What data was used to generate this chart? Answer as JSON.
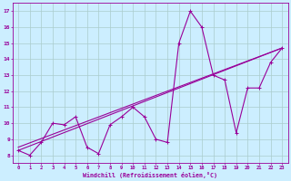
{
  "xlabel": "Windchill (Refroidissement éolien,°C)",
  "background_color": "#cceeff",
  "grid_color": "#aacccc",
  "line_color": "#990099",
  "xlim": [
    -0.5,
    23.5
  ],
  "ylim": [
    7.5,
    17.5
  ],
  "x_ticks": [
    0,
    1,
    2,
    3,
    4,
    5,
    6,
    7,
    8,
    9,
    10,
    11,
    12,
    13,
    14,
    15,
    16,
    17,
    18,
    19,
    20,
    21,
    22,
    23
  ],
  "y_ticks": [
    8,
    9,
    10,
    11,
    12,
    13,
    14,
    15,
    16,
    17
  ],
  "data_x": [
    0,
    1,
    2,
    3,
    4,
    5,
    6,
    7,
    8,
    9,
    10,
    11,
    12,
    13,
    14,
    15,
    16,
    17,
    18,
    19,
    20,
    21,
    22,
    23
  ],
  "data_y": [
    8.3,
    8.0,
    8.8,
    10.0,
    9.9,
    10.4,
    8.5,
    8.1,
    9.9,
    10.4,
    11.0,
    10.4,
    9.0,
    8.8,
    15.0,
    17.0,
    16.0,
    13.0,
    12.7,
    9.4,
    12.2,
    12.2,
    13.8,
    14.7
  ],
  "trend1_x": [
    0,
    23
  ],
  "trend1_y": [
    8.3,
    14.7
  ],
  "trend2_x": [
    0,
    23
  ],
  "trend2_y": [
    8.5,
    14.7
  ],
  "figwidth": 3.2,
  "figheight": 2.0,
  "dpi": 100
}
